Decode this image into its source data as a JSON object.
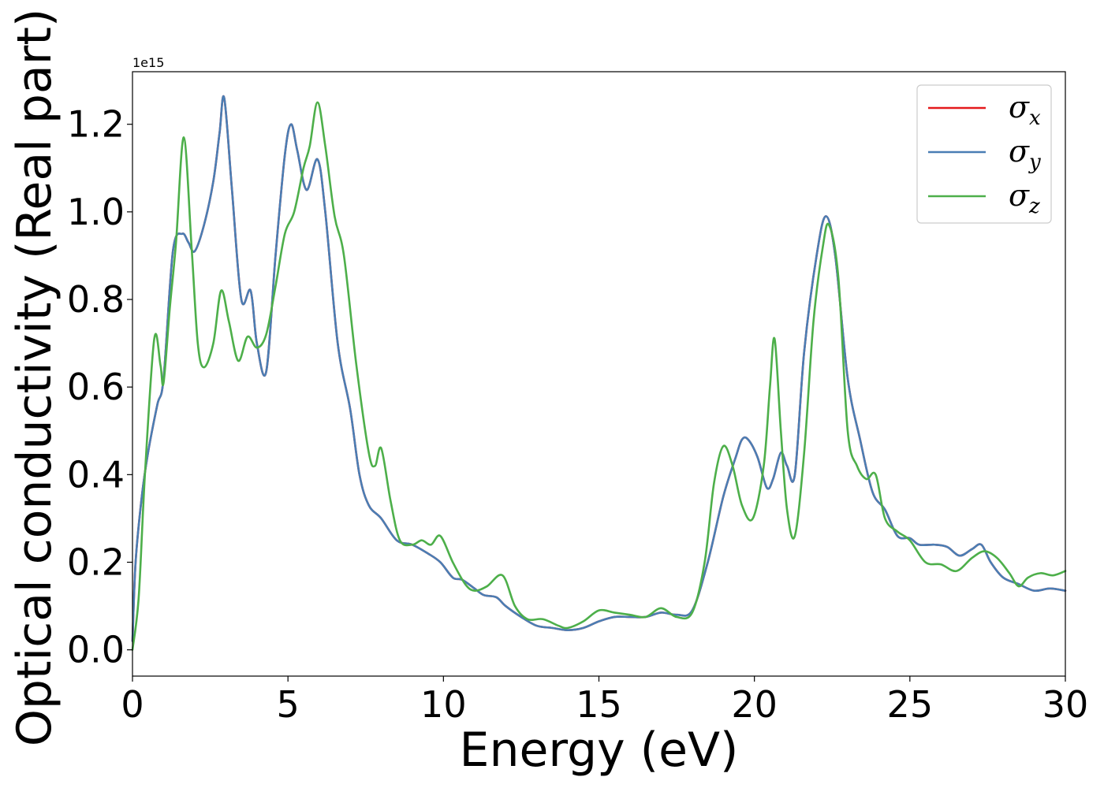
{
  "chart_data": {
    "type": "line",
    "title": "",
    "xlabel": "Energy (eV)",
    "ylabel": "Optical conductivity (Real part)",
    "y_offset_label": "1e15",
    "xlim": [
      0,
      30
    ],
    "ylim": [
      -0.06,
      1.32
    ],
    "x_ticks": [
      0,
      5,
      10,
      15,
      20,
      25,
      30
    ],
    "x_tick_labels": [
      "0",
      "5",
      "10",
      "15",
      "20",
      "25",
      "30"
    ],
    "y_ticks": [
      0.0,
      0.2,
      0.4,
      0.6,
      0.8,
      1.0,
      1.2
    ],
    "y_tick_labels": [
      "0.0",
      "0.2",
      "0.4",
      "0.6",
      "0.8",
      "1.0",
      "1.2"
    ],
    "grid": false,
    "legend_position": "top-right",
    "series": [
      {
        "name": "σx",
        "symbol": "σ",
        "subscript": "x",
        "color": "#e41a1c",
        "x": [
          0,
          0.1,
          0.3,
          0.5,
          0.8,
          1.0,
          1.3,
          1.6,
          1.8,
          2.0,
          2.3,
          2.6,
          2.8,
          2.95,
          3.2,
          3.5,
          3.8,
          4.0,
          4.3,
          4.6,
          4.9,
          5.1,
          5.3,
          5.6,
          5.95,
          6.2,
          6.6,
          7.0,
          7.3,
          7.6,
          8.0,
          8.5,
          9.0,
          9.5,
          9.9,
          10.3,
          10.6,
          11.0,
          11.3,
          11.7,
          12.0,
          12.5,
          13.0,
          13.5,
          14.0,
          14.5,
          15.0,
          15.5,
          16.0,
          16.5,
          17.0,
          17.5,
          18.0,
          18.5,
          19.0,
          19.4,
          19.6,
          19.8,
          20.1,
          20.4,
          20.6,
          20.85,
          21.05,
          21.3,
          21.6,
          22.0,
          22.3,
          22.6,
          23.0,
          23.4,
          23.8,
          24.2,
          24.6,
          25.0,
          25.3,
          25.8,
          26.2,
          26.6,
          27.0,
          27.3,
          27.6,
          28.0,
          28.5,
          29.0,
          29.5,
          30.0
        ],
        "y": [
          0.02,
          0.2,
          0.35,
          0.45,
          0.56,
          0.62,
          0.91,
          0.95,
          0.93,
          0.91,
          0.97,
          1.07,
          1.18,
          1.26,
          1.05,
          0.8,
          0.82,
          0.7,
          0.635,
          0.9,
          1.13,
          1.2,
          1.14,
          1.05,
          1.12,
          1.0,
          0.7,
          0.55,
          0.4,
          0.33,
          0.3,
          0.25,
          0.24,
          0.22,
          0.2,
          0.165,
          0.16,
          0.14,
          0.125,
          0.12,
          0.1,
          0.075,
          0.055,
          0.05,
          0.045,
          0.05,
          0.065,
          0.075,
          0.075,
          0.075,
          0.085,
          0.08,
          0.09,
          0.2,
          0.35,
          0.44,
          0.48,
          0.48,
          0.44,
          0.37,
          0.39,
          0.45,
          0.42,
          0.4,
          0.68,
          0.9,
          0.99,
          0.9,
          0.62,
          0.48,
          0.36,
          0.32,
          0.26,
          0.255,
          0.24,
          0.24,
          0.235,
          0.215,
          0.23,
          0.24,
          0.2,
          0.165,
          0.15,
          0.135,
          0.14,
          0.135
        ]
      },
      {
        "name": "σy",
        "symbol": "σ",
        "subscript": "y",
        "color": "#4a7eb4",
        "x": [
          0,
          0.1,
          0.3,
          0.5,
          0.8,
          1.0,
          1.3,
          1.6,
          1.8,
          2.0,
          2.3,
          2.6,
          2.8,
          2.95,
          3.2,
          3.5,
          3.8,
          4.0,
          4.3,
          4.6,
          4.9,
          5.1,
          5.3,
          5.6,
          5.95,
          6.2,
          6.6,
          7.0,
          7.3,
          7.6,
          8.0,
          8.5,
          9.0,
          9.5,
          9.9,
          10.3,
          10.6,
          11.0,
          11.3,
          11.7,
          12.0,
          12.5,
          13.0,
          13.5,
          14.0,
          14.5,
          15.0,
          15.5,
          16.0,
          16.5,
          17.0,
          17.5,
          18.0,
          18.5,
          19.0,
          19.4,
          19.6,
          19.8,
          20.1,
          20.4,
          20.6,
          20.85,
          21.05,
          21.3,
          21.6,
          22.0,
          22.3,
          22.6,
          23.0,
          23.4,
          23.8,
          24.2,
          24.6,
          25.0,
          25.3,
          25.8,
          26.2,
          26.6,
          27.0,
          27.3,
          27.6,
          28.0,
          28.5,
          29.0,
          29.5,
          30.0
        ],
        "y": [
          0.02,
          0.2,
          0.35,
          0.45,
          0.56,
          0.62,
          0.91,
          0.95,
          0.93,
          0.91,
          0.97,
          1.07,
          1.18,
          1.26,
          1.05,
          0.8,
          0.82,
          0.7,
          0.635,
          0.9,
          1.13,
          1.2,
          1.14,
          1.05,
          1.12,
          1.0,
          0.7,
          0.55,
          0.4,
          0.33,
          0.3,
          0.25,
          0.24,
          0.22,
          0.2,
          0.165,
          0.16,
          0.14,
          0.125,
          0.12,
          0.1,
          0.075,
          0.055,
          0.05,
          0.045,
          0.05,
          0.065,
          0.075,
          0.075,
          0.075,
          0.085,
          0.08,
          0.09,
          0.2,
          0.35,
          0.44,
          0.48,
          0.48,
          0.44,
          0.37,
          0.39,
          0.45,
          0.42,
          0.4,
          0.68,
          0.9,
          0.99,
          0.9,
          0.62,
          0.48,
          0.36,
          0.32,
          0.26,
          0.255,
          0.24,
          0.24,
          0.235,
          0.215,
          0.23,
          0.24,
          0.2,
          0.165,
          0.15,
          0.135,
          0.14,
          0.135
        ]
      },
      {
        "name": "σz",
        "symbol": "σ",
        "subscript": "z",
        "color": "#4daf4a",
        "x": [
          0,
          0.2,
          0.4,
          0.7,
          0.9,
          1.0,
          1.2,
          1.4,
          1.65,
          1.9,
          2.1,
          2.3,
          2.6,
          2.85,
          3.1,
          3.4,
          3.7,
          4.0,
          4.3,
          4.6,
          4.9,
          5.2,
          5.5,
          5.7,
          5.95,
          6.2,
          6.5,
          6.8,
          7.2,
          7.6,
          7.8,
          8.0,
          8.3,
          8.6,
          9.0,
          9.3,
          9.6,
          9.9,
          10.3,
          10.7,
          11.0,
          11.4,
          11.9,
          12.3,
          12.7,
          13.2,
          13.7,
          14.0,
          14.5,
          15.0,
          15.5,
          16.0,
          16.5,
          17.0,
          17.5,
          18.0,
          18.4,
          18.7,
          19.0,
          19.3,
          19.6,
          19.95,
          20.3,
          20.5,
          20.65,
          20.85,
          21.05,
          21.3,
          21.6,
          21.9,
          22.2,
          22.4,
          22.7,
          23.0,
          23.3,
          23.6,
          23.9,
          24.2,
          24.6,
          25.0,
          25.5,
          26.0,
          26.5,
          27.0,
          27.4,
          27.8,
          28.2,
          28.5,
          28.8,
          29.2,
          29.6,
          30.0
        ],
        "y": [
          0.0,
          0.12,
          0.4,
          0.71,
          0.65,
          0.61,
          0.78,
          0.93,
          1.17,
          0.92,
          0.7,
          0.645,
          0.7,
          0.82,
          0.75,
          0.66,
          0.715,
          0.69,
          0.72,
          0.83,
          0.95,
          1.0,
          1.1,
          1.15,
          1.25,
          1.15,
          0.99,
          0.9,
          0.65,
          0.45,
          0.42,
          0.46,
          0.34,
          0.25,
          0.24,
          0.25,
          0.24,
          0.26,
          0.2,
          0.15,
          0.135,
          0.145,
          0.17,
          0.1,
          0.07,
          0.07,
          0.055,
          0.05,
          0.065,
          0.09,
          0.085,
          0.08,
          0.075,
          0.095,
          0.075,
          0.085,
          0.2,
          0.38,
          0.465,
          0.42,
          0.33,
          0.3,
          0.42,
          0.6,
          0.71,
          0.5,
          0.32,
          0.26,
          0.45,
          0.75,
          0.92,
          0.97,
          0.85,
          0.5,
          0.42,
          0.39,
          0.4,
          0.3,
          0.27,
          0.25,
          0.2,
          0.195,
          0.18,
          0.21,
          0.225,
          0.21,
          0.175,
          0.145,
          0.165,
          0.175,
          0.17,
          0.18
        ]
      }
    ]
  }
}
